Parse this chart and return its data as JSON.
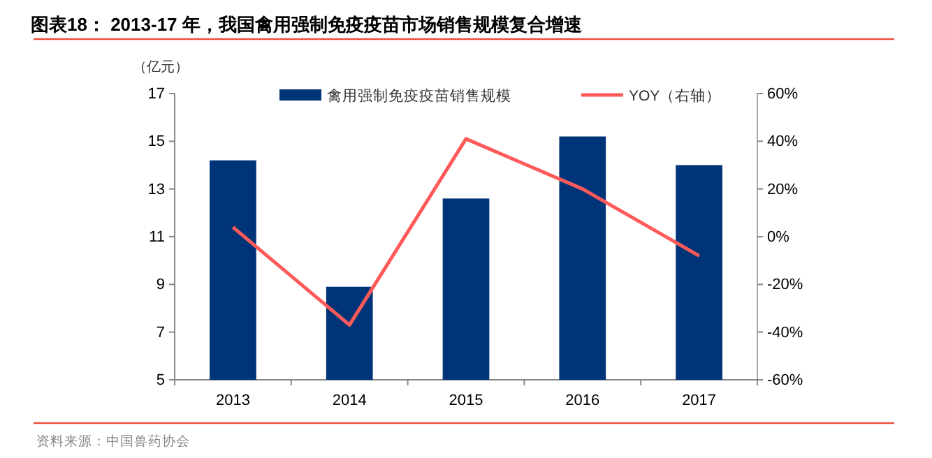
{
  "chart_data": {
    "type": "bar",
    "title": "图表18：  2013-17 年，我国禽用强制免疫疫苗市场销售规模复合增速",
    "ylabel": "（亿元）",
    "categories": [
      "2013",
      "2014",
      "2015",
      "2016",
      "2017"
    ],
    "series": [
      {
        "name": "禽用强制免疫疫苗销售规模",
        "color": "#003478",
        "values": [
          14.2,
          8.9,
          12.6,
          15.2,
          14.0
        ]
      },
      {
        "name": "YOY（右轴）",
        "type": "line",
        "axis": "y2",
        "color": "#ff5a5a",
        "values": [
          4,
          -37,
          41,
          20,
          -8
        ]
      }
    ],
    "ylim": [
      5,
      17
    ],
    "yticks": [
      5,
      7,
      9,
      11,
      13,
      15,
      17
    ],
    "y2lim": [
      -60,
      60
    ],
    "y2ticks": [
      {
        "value": -60,
        "label": "-60%"
      },
      {
        "value": -40,
        "label": "-40%"
      },
      {
        "value": -20,
        "label": "-20%"
      },
      {
        "value": 0,
        "label": "0%"
      },
      {
        "value": 20,
        "label": "20%"
      },
      {
        "value": 40,
        "label": "40%"
      },
      {
        "value": 60,
        "label": "60%"
      }
    ],
    "legend": "top",
    "grid": false,
    "marker": "none",
    "line_style": "solid",
    "annotations": [
      "资料来源：中国兽药协会"
    ]
  }
}
